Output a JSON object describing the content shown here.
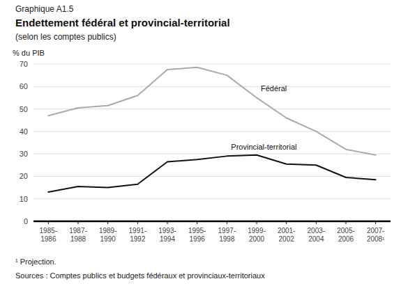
{
  "chart_data": {
    "type": "line",
    "title": "Endettement fédéral et provincial-territorial",
    "subtitle": "(selon les comptes publics)",
    "y_label": "% du PIB",
    "annotations": [
      "Graphique A1.5",
      "¹ Projection.",
      "Sources : Comptes publics et budgets fédéraux et provinciaux-territoriaux"
    ],
    "categories": [
      "1985-\n1986",
      "1987-\n1988",
      "1989-\n1990",
      "1991-\n1992",
      "1993-\n1994",
      "1995-\n1996",
      "1997-\n1998",
      "1999-\n2000",
      "2001-\n2002",
      "2003-\n2004",
      "2005-\n2006",
      "2007-\n2008¹"
    ],
    "series": [
      {
        "name": "Fédéral",
        "color": "#aaaaaa",
        "values": [
          47.0,
          50.5,
          51.5,
          56.0,
          67.5,
          68.5,
          65.0,
          55.0,
          46.0,
          40.0,
          32.0,
          29.5
        ]
      },
      {
        "name": "Provincial-territorial",
        "color": "#111111",
        "values": [
          13.0,
          15.5,
          15.0,
          16.5,
          26.5,
          27.5,
          29.0,
          29.5,
          25.5,
          25.0,
          19.5,
          18.5
        ]
      }
    ],
    "ylim": [
      0,
      70
    ],
    "yticks": [
      0,
      10,
      20,
      30,
      40,
      50,
      60,
      70
    ],
    "grid": true
  }
}
